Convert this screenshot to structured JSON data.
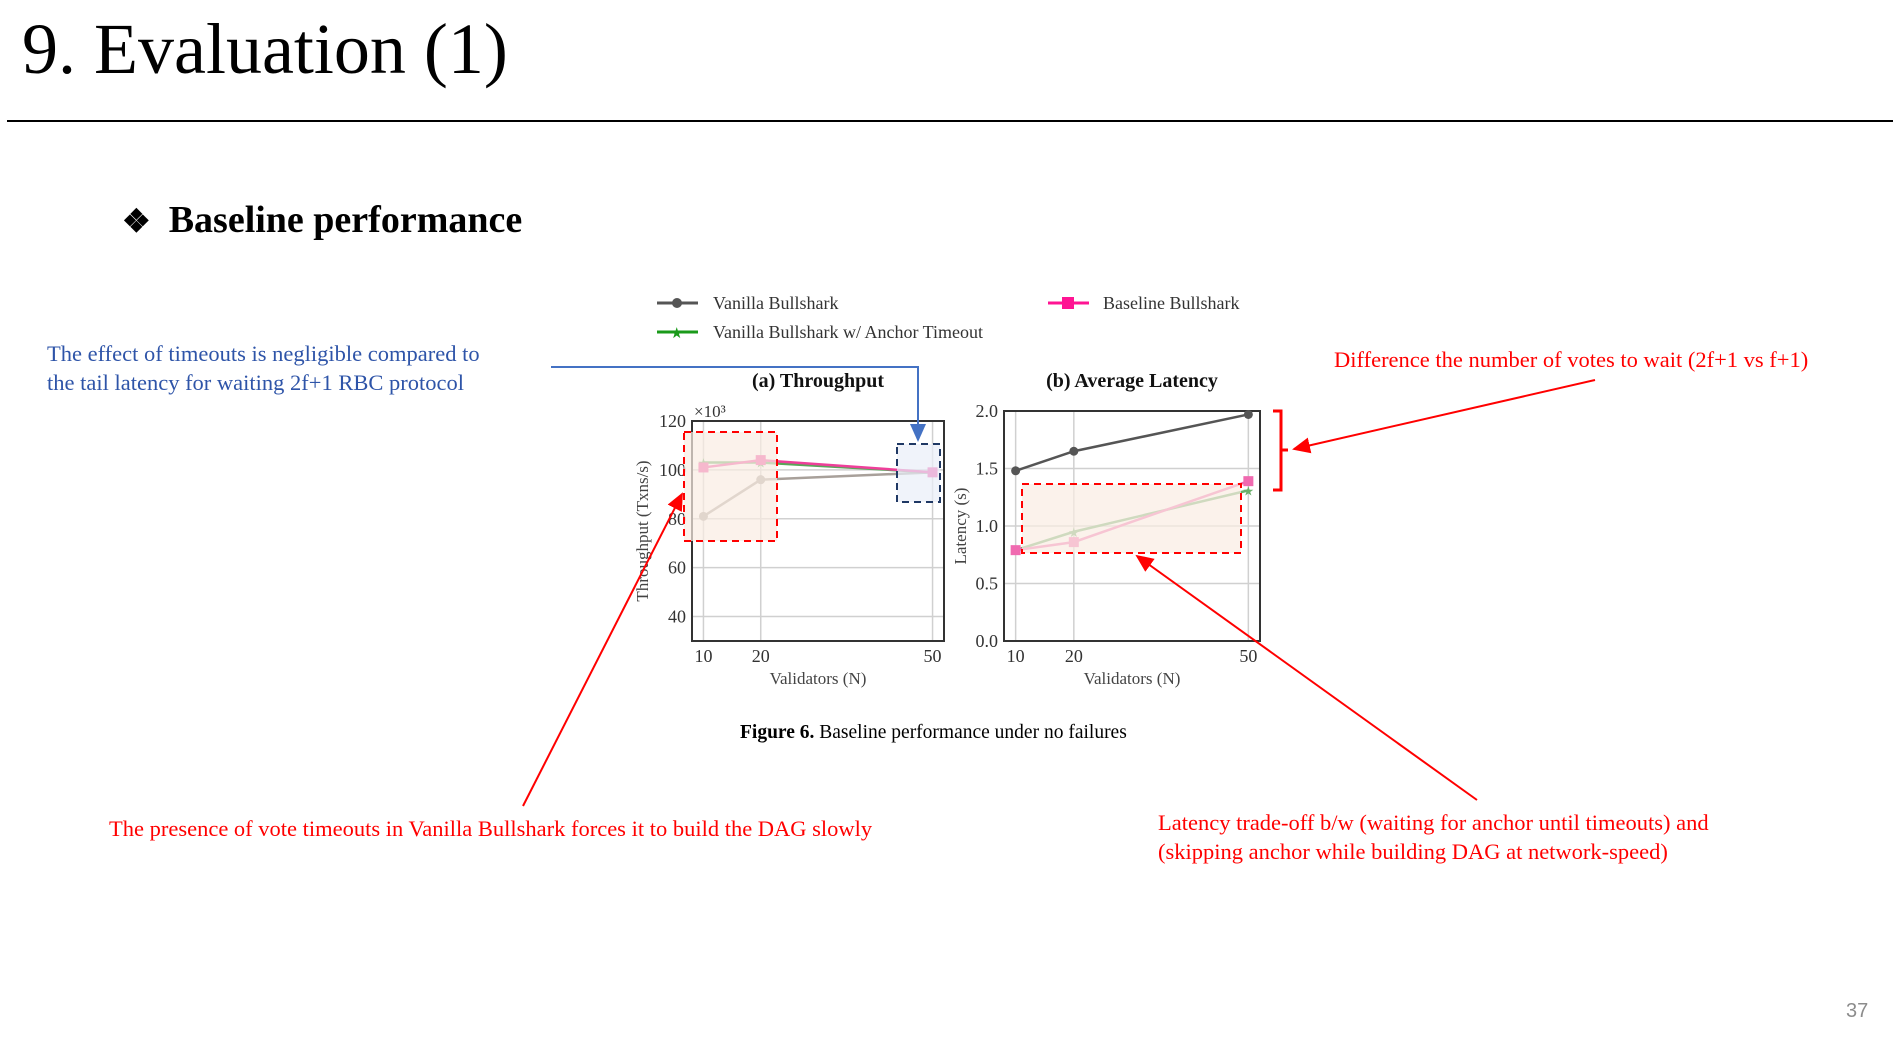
{
  "slide": {
    "title": "9. Evaluation (1)",
    "heading_bullet": "❖",
    "heading": "Baseline performance",
    "page_number": "37"
  },
  "annotations": {
    "timeouts_negligible": [
      "The effect of timeouts is negligible compared to",
      "the tail latency for waiting 2f+1 RBC protocol"
    ],
    "votes_difference": "Difference the number of votes to wait (2f+1 vs f+1)",
    "vote_timeouts": "The presence of vote timeouts in Vanilla Bullshark forces it to build the DAG slowly",
    "latency_tradeoff": [
      "Latency trade-off b/w (waiting for anchor until timeouts) and",
      "(skipping anchor while building DAG at network-speed)"
    ],
    "colors": {
      "blue": "#2e54a8",
      "red": "#ff0000",
      "box_fill_red": "#f9ece3",
      "box_fill_blue": "#e9eef8"
    }
  },
  "figure": {
    "caption_bold": "Figure 6.",
    "caption": " Baseline performance under no failures",
    "legend": [
      {
        "name": "Vanilla Bullshark",
        "color": "#555555",
        "marker": "circle"
      },
      {
        "name": "Baseline Bullshark",
        "color": "#ff1493",
        "marker": "square"
      },
      {
        "name": "Vanilla Bullshark w/ Anchor Timeout",
        "color": "#1a9a1a",
        "marker": "star"
      }
    ]
  },
  "chart_data": [
    {
      "type": "line",
      "title": "(a) Throughput",
      "xlabel": "Validators (N)",
      "ylabel": "Throughput (Txns/s)",
      "y_multiplier": "×10³",
      "x": [
        10,
        20,
        50
      ],
      "xticks": [
        10,
        20,
        50
      ],
      "yticks": [
        40,
        60,
        80,
        100,
        120
      ],
      "xlim": [
        8,
        52
      ],
      "ylim": [
        30,
        120
      ],
      "grid": true,
      "series": [
        {
          "name": "Vanilla Bullshark",
          "values": [
            81,
            96,
            99
          ],
          "color": "#a8a09a",
          "marker": "circle"
        },
        {
          "name": "Vanilla Bullshark w/ Anchor Timeout",
          "values": [
            103,
            103,
            99
          ],
          "color": "#5aa55a",
          "marker": "star"
        },
        {
          "name": "Baseline Bullshark",
          "values": [
            101,
            104,
            99
          ],
          "color": "#ee3f9a",
          "marker": "square"
        }
      ]
    },
    {
      "type": "line",
      "title": "(b) Average Latency",
      "xlabel": "Validators (N)",
      "ylabel": "Latency (s)",
      "x": [
        10,
        20,
        50
      ],
      "xticks": [
        10,
        20,
        50
      ],
      "yticks": [
        0.0,
        0.5,
        1.0,
        1.5,
        2.0
      ],
      "xlim": [
        8,
        52
      ],
      "ylim": [
        0,
        2.0
      ],
      "grid": true,
      "series": [
        {
          "name": "Vanilla Bullshark",
          "values": [
            1.48,
            1.65,
            1.97
          ],
          "color": "#555555",
          "marker": "circle"
        },
        {
          "name": "Vanilla Bullshark w/ Anchor Timeout",
          "values": [
            0.79,
            0.95,
            1.31
          ],
          "color": "#6cb06c",
          "marker": "star"
        },
        {
          "name": "Baseline Bullshark",
          "values": [
            0.79,
            0.86,
            1.39
          ],
          "color": "#f06ab0",
          "marker": "square"
        }
      ]
    }
  ]
}
